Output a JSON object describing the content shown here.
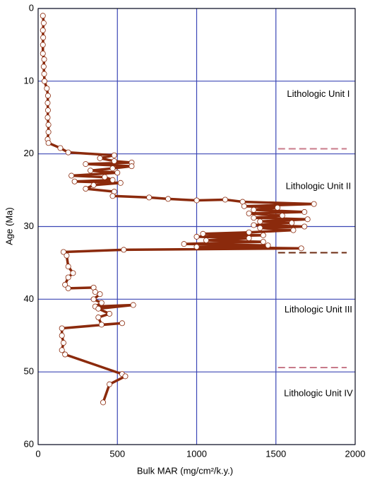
{
  "chart_data": {
    "type": "line",
    "xlabel": "Bulk MAR (mg/cm²/k.y.)",
    "ylabel": "Age (Ma)",
    "x": [
      30,
      35,
      30,
      32,
      30,
      30,
      38,
      35,
      38,
      40,
      55,
      62,
      60,
      62,
      60,
      65,
      65,
      60,
      65,
      140,
      190,
      480,
      390,
      480,
      590,
      300,
      590,
      470,
      330,
      500,
      210,
      420,
      470,
      230,
      520,
      350,
      300,
      480,
      470,
      700,
      820,
      1000,
      1180,
      1290,
      1740,
      1300,
      1510,
      1360,
      1680,
      1330,
      1540,
      1360,
      1700,
      1400,
      1600,
      1360,
      1680,
      1400,
      1610,
      1330,
      1040,
      1420,
      1000,
      1330,
      1060,
      1420,
      920,
      1450,
      1000,
      1660,
      540,
      160,
      180,
      190,
      220,
      190,
      170,
      190,
      350,
      360,
      390,
      350,
      400,
      360,
      600,
      380,
      450,
      380,
      400,
      530,
      150,
      150,
      160,
      150,
      170,
      530,
      550,
      450,
      410
    ],
    "series": [
      {
        "name": "Bulk MAR",
        "color": "#8b2a0c",
        "values": [
          1,
          2,
          3,
          4,
          5,
          6.2,
          7,
          8,
          9,
          10,
          11,
          12,
          13,
          14,
          15,
          16,
          17,
          18,
          18.5,
          19.2,
          19.8,
          20.2,
          20.6,
          21,
          21.2,
          21.4,
          21.7,
          22,
          22.3,
          22.6,
          23,
          23.2,
          23.6,
          23.8,
          24,
          24.3,
          24.8,
          25.2,
          25.8,
          26,
          26.2,
          26.4,
          26.3,
          26.6,
          26.9,
          27.2,
          27.4,
          27.7,
          28,
          28.2,
          28.5,
          28.8,
          29,
          29.3,
          29.5,
          29.8,
          30,
          30.2,
          30.5,
          30.8,
          31,
          31.2,
          31.4,
          31.6,
          31.9,
          32.1,
          32.4,
          32.6,
          32.8,
          33,
          33.2,
          33.5,
          34,
          35.5,
          36.4,
          37,
          38,
          38.5,
          38.4,
          39,
          39.3,
          40,
          40.5,
          41,
          40.8,
          41.3,
          42,
          42.5,
          43.5,
          43.3,
          44,
          45,
          46,
          47,
          47.6,
          50.3,
          50.6,
          51.7,
          54.2
        ]
      }
    ],
    "xlim": [
      0,
      2000
    ],
    "xticks": [
      0,
      500,
      1000,
      1500,
      2000
    ],
    "ylim": [
      0,
      60
    ],
    "yticks": [
      0,
      10,
      20,
      30,
      40,
      50,
      60
    ],
    "y_inverted": true,
    "grid": true,
    "grid_color": "#3b46b5",
    "unit_boundaries": [
      {
        "value": 19.3,
        "color": "#c87a8a"
      },
      {
        "value": 33.6,
        "color": "#6b2a10"
      },
      {
        "value": 49.4,
        "color": "#c87a8a"
      }
    ],
    "annotations": [
      "Lithologic Unit I",
      "Lithologic Unit II",
      "Lithologic Unit III",
      "Lithologic Unit IV"
    ]
  }
}
